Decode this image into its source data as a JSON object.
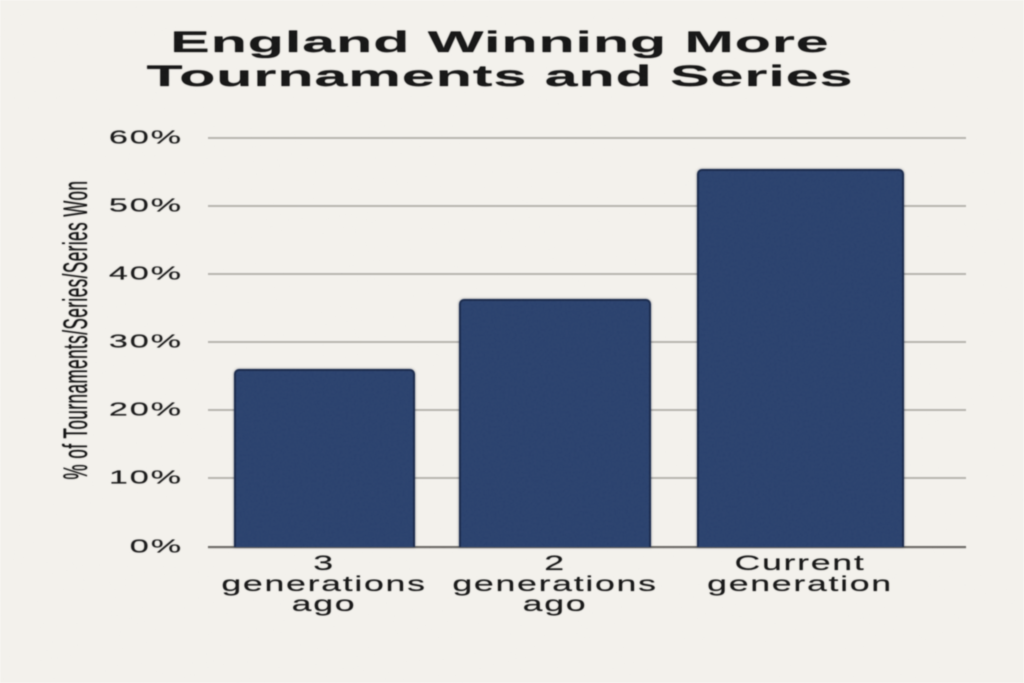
{
  "chart_data": {
    "type": "bar",
    "title": "England Winning More\nTournaments and Series",
    "ylabel": "% of Tournaments/Series/Series Won",
    "xlabel": "",
    "categories": [
      "3 generations ago",
      "2 generations ago",
      "Current generation"
    ],
    "values": [
      26,
      36.4,
      55.5
    ],
    "unit": "%",
    "ylim": [
      0,
      60
    ],
    "yticks": [
      {
        "value": 0,
        "label": "0%"
      },
      {
        "value": 10,
        "label": "10%"
      },
      {
        "value": 20,
        "label": "20%"
      },
      {
        "value": 30,
        "label": "30%"
      },
      {
        "value": 40,
        "label": "40%"
      },
      {
        "value": 50,
        "label": "50%"
      },
      {
        "value": 60,
        "label": "60%"
      }
    ],
    "grid": "horizontal",
    "legend": "none",
    "bar_color": "#2b426e",
    "background_color": "#f3f1ec"
  }
}
